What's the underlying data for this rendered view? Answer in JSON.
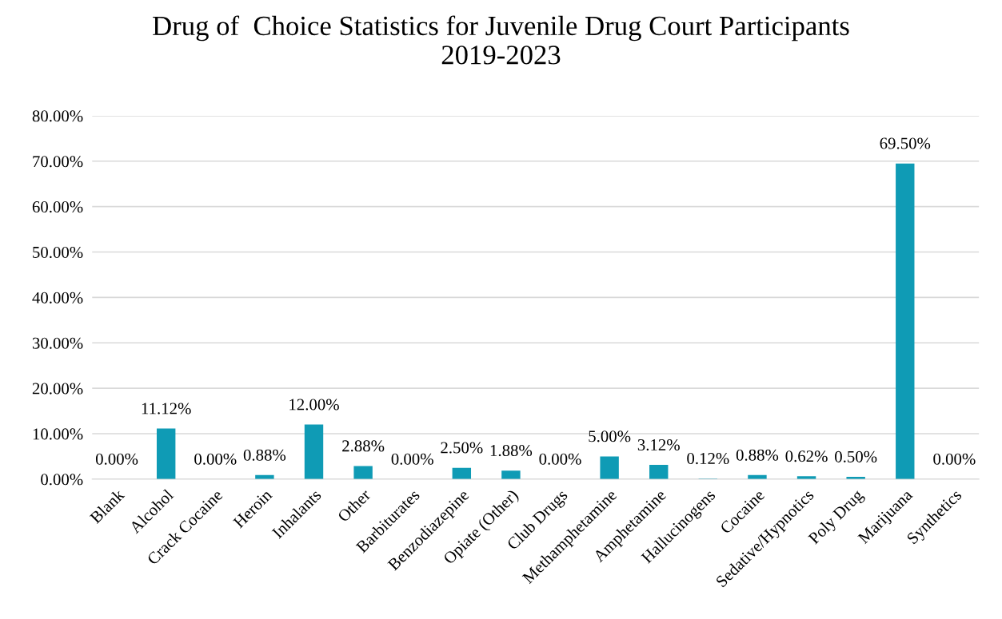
{
  "chart_data": {
    "type": "bar",
    "title": "Drug of  Choice Statistics for Juvenile Drug Court Participants\n2019-2023",
    "categories": [
      "Blank",
      "Alcohol",
      "Crack Cocaine",
      "Heroin",
      "Inhalants",
      "Other",
      "Barbiturates",
      "Benzodiazepine",
      "Opiate (Other)",
      "Club Drugs",
      "Methamphetamine",
      "Amphetamine",
      "Hallucinogens",
      "Cocaine",
      "Sedative/Hypnotics",
      "Poly Drug",
      "Marijuana",
      "Synthetics"
    ],
    "values": [
      0,
      11.12,
      0,
      0.88,
      12,
      2.88,
      0,
      2.5,
      1.88,
      0,
      5,
      3.12,
      0.12,
      0.88,
      0.62,
      0.5,
      69.5,
      0
    ],
    "value_labels": [
      "0.00%",
      "11.12%",
      "0.00%",
      "0.88%",
      "12.00%",
      "2.88%",
      "0.00%",
      "2.50%",
      "1.88%",
      "0.00%",
      "5.00%",
      "3.12%",
      "0.12%",
      "0.88%",
      "0.62%",
      "0.50%",
      "69.50%",
      "0.00%"
    ],
    "color": "#0f9bb5",
    "ylim": [
      0,
      80
    ],
    "yticks": [
      {
        "value": 0,
        "label": "0.00%"
      },
      {
        "value": 10,
        "label": "10.00%"
      },
      {
        "value": 20,
        "label": "20.00%"
      },
      {
        "value": 30,
        "label": "30.00%"
      },
      {
        "value": 40,
        "label": "40.00%"
      },
      {
        "value": 50,
        "label": "50.00%"
      },
      {
        "value": 60,
        "label": "60.00%"
      },
      {
        "value": 70,
        "label": "70.00%"
      },
      {
        "value": 80,
        "label": "80.00%"
      }
    ],
    "grid": "y"
  }
}
